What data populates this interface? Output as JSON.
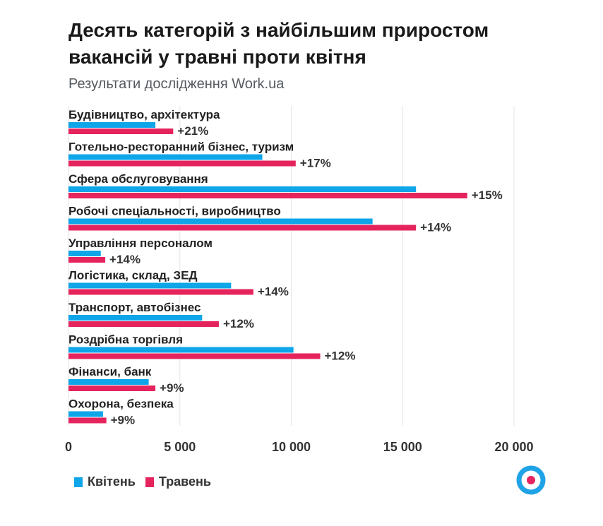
{
  "title": "Десять категорій з найбільшим приростом вакансій у травні проти квітня",
  "subtitle": "Результати дослідження Work.ua",
  "colors": {
    "april": "#0ea5e9",
    "may": "#e5245e",
    "logo_ring": "#1fa3e6",
    "logo_dot": "#e5245e"
  },
  "legend": {
    "april": "Квітень",
    "may": "Травень"
  },
  "logo_icon": "work-ua-logo-icon",
  "chart_data": {
    "type": "bar",
    "orientation": "horizontal",
    "xlim": [
      0,
      20000
    ],
    "ticks": [
      {
        "value": 0,
        "label": "0"
      },
      {
        "value": 5000,
        "label": "5 000"
      },
      {
        "value": 10000,
        "label": "10 000"
      },
      {
        "value": 15000,
        "label": "15 000"
      },
      {
        "value": 20000,
        "label": "20 000"
      }
    ],
    "grid": true,
    "legend_position": "bottom-left",
    "categories": [
      "Будівництво, архітектура",
      "Готельно-ресторанний бізнес, туризм",
      "Сфера обслуговування",
      "Робочі спеціальності, виробництво",
      "Управління персоналом",
      "Логістика, склад, ЗЕД",
      "Транспорт, автобізнес",
      "Роздрібна торгівля",
      "Фінанси, банк",
      "Охорона, безпека"
    ],
    "series": [
      {
        "name": "Квітень",
        "values": [
          3900,
          8700,
          15600,
          13650,
          1450,
          7300,
          6000,
          10100,
          3600,
          1550
        ]
      },
      {
        "name": "Травень",
        "values": [
          4700,
          10200,
          17900,
          15600,
          1650,
          8300,
          6750,
          11300,
          3900,
          1700
        ]
      }
    ],
    "data_labels": [
      "+21%",
      "+17%",
      "+15%",
      "+14%",
      "+14%",
      "+14%",
      "+12%",
      "+12%",
      "+9%",
      "+9%"
    ]
  }
}
